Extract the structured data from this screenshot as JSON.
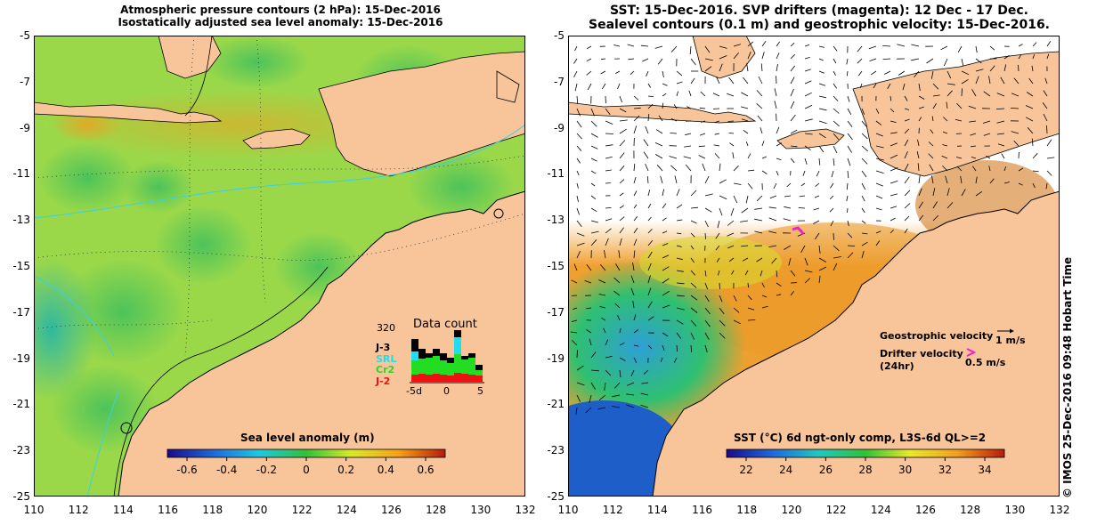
{
  "left_map": {
    "title_line1": "Atmospheric pressure contours (2 hPa): 15-Dec-2016",
    "title_line2": "Isostatically adjusted sea level anomaly: 15-Dec-2016",
    "x_ticks": [
      "110",
      "112",
      "114",
      "116",
      "118",
      "120",
      "122",
      "124",
      "126",
      "128",
      "130",
      "132"
    ],
    "y_ticks": [
      "-5",
      "-7",
      "-9",
      "-11",
      "-13",
      "-15",
      "-17",
      "-19",
      "-21",
      "-23",
      "-25"
    ],
    "colorbar_title": "Sea level anomaly (m)",
    "colorbar_ticks": [
      "-0.6",
      "-0.4",
      "-0.2",
      "0",
      "0.2",
      "0.4",
      "0.6"
    ],
    "data_count": {
      "title": "Data count",
      "max_label": "320",
      "series": [
        {
          "name": "J-3",
          "color": "#000000"
        },
        {
          "name": "SRL",
          "color": "#22ddee"
        },
        {
          "name": "Cr2",
          "color": "#22dd22"
        },
        {
          "name": "J-2",
          "color": "#ee1111"
        }
      ],
      "x_labels": [
        "-5d",
        "0",
        "5"
      ]
    }
  },
  "right_map": {
    "title_line1": "SST: 15-Dec-2016. SVP drifters (magenta): 12 Dec - 17 Dec.",
    "title_line2": "Sealevel contours (0.1 m) and geostrophic velocity: 15-Dec-2016.",
    "x_ticks": [
      "110",
      "112",
      "114",
      "116",
      "118",
      "120",
      "122",
      "124",
      "126",
      "128",
      "130",
      "132"
    ],
    "y_ticks": [
      "-5",
      "-7",
      "-9",
      "-11",
      "-13",
      "-15",
      "-17",
      "-19",
      "-21",
      "-23",
      "-25"
    ],
    "colorbar_title": "SST (°C) 6d ngt-only comp, L3S-6d QL>=2",
    "colorbar_ticks": [
      "22",
      "24",
      "26",
      "28",
      "30",
      "32",
      "34"
    ],
    "legend": {
      "geostrophic_label": "Geostrophic velocity",
      "geostrophic_scale": "1 m/s",
      "drifter_label": "Drifter velocity",
      "drifter_sub": "(24hr)",
      "drifter_scale": "0.5 m/s"
    }
  },
  "footer_text": "© IMOS 25-Dec-2016 09:48 Hobart Time",
  "colors": {
    "land": "#f8c49a",
    "sea_left_base": "#9ad84a",
    "drifter": "#ee22cc"
  }
}
